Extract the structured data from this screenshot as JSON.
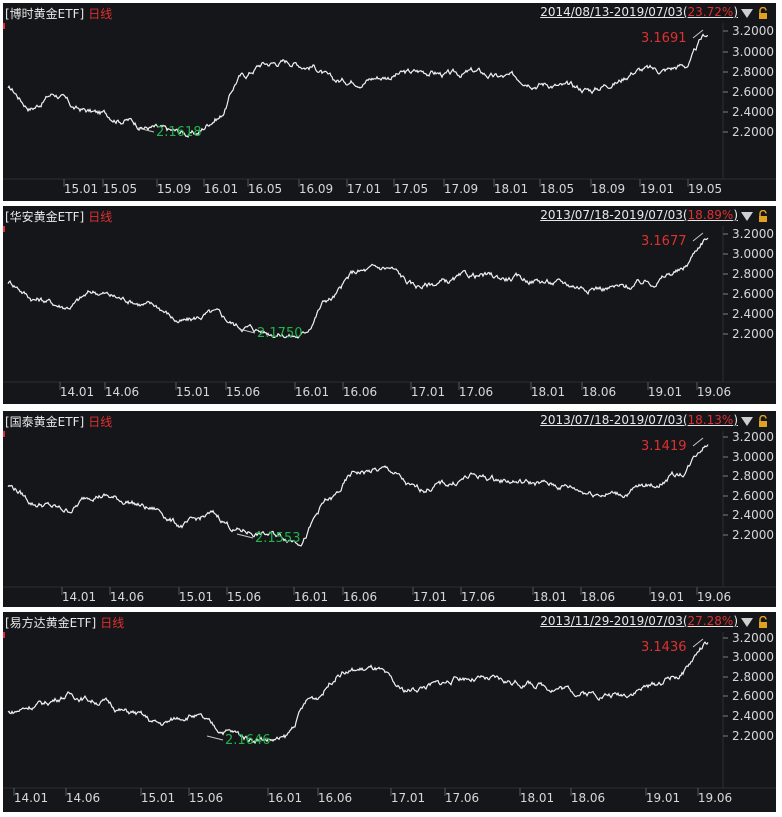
{
  "chart_data": [
    {
      "type": "line",
      "title": "[博时黄金ETF]",
      "period_label": "日线",
      "range": "2014/08/13-2019/07/03",
      "change_pct": "23.72%",
      "yticks": [
        "3.2000",
        "3.0000",
        "2.8000",
        "2.6000",
        "2.4000",
        "2.2000"
      ],
      "ylim": [
        2.05,
        3.3
      ],
      "xticks": [
        "15.01",
        "15.05",
        "15.09",
        "16.01",
        "16.05",
        "16.09",
        "17.01",
        "17.05",
        "17.09",
        "18.01",
        "18.05",
        "18.09",
        "19.01",
        "19.05"
      ],
      "max_label": "3.1691",
      "min_label": "2.1618",
      "x": [
        "14.08",
        "14.10",
        "14.12",
        "15.01",
        "15.03",
        "15.05",
        "15.07",
        "15.09",
        "15.11",
        "16.01",
        "16.03",
        "16.05",
        "16.07",
        "16.09",
        "16.11",
        "17.01",
        "17.03",
        "17.05",
        "17.07",
        "17.09",
        "17.11",
        "18.01",
        "18.03",
        "18.05",
        "18.07",
        "18.09",
        "18.11",
        "19.01",
        "19.03",
        "19.05",
        "19.07"
      ],
      "values": [
        2.62,
        2.45,
        2.58,
        2.42,
        2.38,
        2.33,
        2.25,
        2.2,
        2.18,
        2.35,
        2.75,
        2.88,
        2.9,
        2.86,
        2.7,
        2.72,
        2.75,
        2.78,
        2.8,
        2.76,
        2.79,
        2.74,
        2.73,
        2.69,
        2.64,
        2.62,
        2.7,
        2.82,
        2.81,
        2.86,
        3.16
      ]
    },
    {
      "type": "line",
      "title": "[华安黄金ETF]",
      "period_label": "日线",
      "range": "2013/07/18-2019/07/03",
      "change_pct": "18.89%",
      "yticks": [
        "3.2000",
        "3.0000",
        "2.8000",
        "2.6000",
        "2.4000",
        "2.2000"
      ],
      "ylim": [
        2.05,
        3.3
      ],
      "xticks": [
        "14.01",
        "14.06",
        "15.01",
        "15.06",
        "16.01",
        "16.06",
        "17.01",
        "17.06",
        "18.01",
        "18.06",
        "19.01",
        "19.06"
      ],
      "max_label": "3.1677",
      "min_label": "2.1750",
      "x": [
        "13.07",
        "13.10",
        "14.01",
        "14.03",
        "14.06",
        "14.09",
        "14.12",
        "15.03",
        "15.06",
        "15.09",
        "15.12",
        "16.03",
        "16.06",
        "16.09",
        "16.12",
        "17.03",
        "17.06",
        "17.09",
        "17.12",
        "18.03",
        "18.06",
        "18.09",
        "18.12",
        "19.03",
        "19.07"
      ],
      "values": [
        2.72,
        2.55,
        2.48,
        2.62,
        2.55,
        2.48,
        2.32,
        2.4,
        2.28,
        2.22,
        2.18,
        2.55,
        2.82,
        2.86,
        2.68,
        2.72,
        2.78,
        2.76,
        2.74,
        2.7,
        2.67,
        2.66,
        2.72,
        2.82,
        3.17
      ]
    },
    {
      "type": "line",
      "title": "[国泰黄金ETF]",
      "period_label": "日线",
      "range": "2013/07/18-2019/07/03",
      "change_pct": "18.13%",
      "yticks": [
        "3.2000",
        "3.0000",
        "2.8000",
        "2.6000",
        "2.4000",
        "2.2000"
      ],
      "ylim": [
        2.05,
        3.3
      ],
      "xticks": [
        "14.01",
        "14.06",
        "15.01",
        "15.06",
        "16.01",
        "16.06",
        "17.01",
        "17.06",
        "18.01",
        "18.06",
        "19.01",
        "19.06"
      ],
      "max_label": "3.1419",
      "min_label": "2.1553",
      "x": [
        "13.07",
        "13.10",
        "14.01",
        "14.03",
        "14.06",
        "14.09",
        "14.12",
        "15.03",
        "15.06",
        "15.09",
        "15.12",
        "16.03",
        "16.06",
        "16.09",
        "16.12",
        "17.03",
        "17.06",
        "17.09",
        "17.12",
        "18.03",
        "18.06",
        "18.09",
        "18.12",
        "19.03",
        "19.07"
      ],
      "values": [
        2.7,
        2.52,
        2.45,
        2.62,
        2.55,
        2.46,
        2.3,
        2.4,
        2.24,
        2.2,
        2.16,
        2.55,
        2.84,
        2.86,
        2.66,
        2.72,
        2.8,
        2.76,
        2.73,
        2.7,
        2.64,
        2.62,
        2.7,
        2.82,
        3.14
      ]
    },
    {
      "type": "line",
      "title": "[易方达黄金ETF]",
      "period_label": "日线",
      "range": "2013/11/29-2019/07/03",
      "change_pct": "27.28%",
      "yticks": [
        "3.2000",
        "3.0000",
        "2.8000",
        "2.6000",
        "2.4000",
        "2.2000"
      ],
      "ylim": [
        2.05,
        3.3
      ],
      "xticks": [
        "14.01",
        "14.06",
        "15.01",
        "15.06",
        "16.01",
        "16.06",
        "17.01",
        "17.06",
        "18.01",
        "18.06",
        "19.01",
        "19.06"
      ],
      "max_label": "3.1436",
      "min_label": "2.1646",
      "x": [
        "13.11",
        "14.01",
        "14.03",
        "14.06",
        "14.09",
        "14.12",
        "15.03",
        "15.06",
        "15.09",
        "15.12",
        "16.03",
        "16.06",
        "16.09",
        "16.12",
        "17.03",
        "17.06",
        "17.09",
        "17.12",
        "18.03",
        "18.06",
        "18.09",
        "18.12",
        "19.03",
        "19.07"
      ],
      "values": [
        2.44,
        2.52,
        2.62,
        2.56,
        2.44,
        2.32,
        2.42,
        2.26,
        2.18,
        2.16,
        2.58,
        2.86,
        2.88,
        2.66,
        2.72,
        2.8,
        2.76,
        2.74,
        2.7,
        2.64,
        2.62,
        2.7,
        2.82,
        3.14
      ]
    }
  ]
}
